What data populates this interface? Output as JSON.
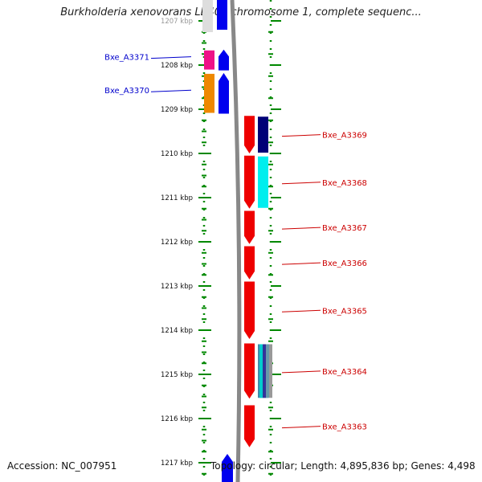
{
  "title": "Burkholderia xenovorans LB400 chromosome 1, complete sequenc...",
  "footer": {
    "accession": "Accession: NC_007951",
    "summary": "Topology: circular; Length: 4,895,836 bp; Genes: 4,498"
  },
  "colors": {
    "forward_label": "#0000cc",
    "reverse_label": "#cc0000",
    "backbone": "#888888",
    "ticks": "#008800"
  },
  "ruler": [
    {
      "label": "1207 kbp",
      "kbp": 1207
    },
    {
      "label": "1208 kbp",
      "kbp": 1208
    },
    {
      "label": "1209 kbp",
      "kbp": 1209
    },
    {
      "label": "1210 kbp",
      "kbp": 1210
    },
    {
      "label": "1211 kbp",
      "kbp": 1211
    },
    {
      "label": "1212 kbp",
      "kbp": 1212
    },
    {
      "label": "1213 kbp",
      "kbp": 1213
    },
    {
      "label": "1214 kbp",
      "kbp": 1214
    },
    {
      "label": "1215 kbp",
      "kbp": 1215
    },
    {
      "label": "1216 kbp",
      "kbp": 1216
    },
    {
      "label": "1217 kbp",
      "kbp": 1217
    }
  ],
  "genes": [
    {
      "name": "Bxe_A3371",
      "strand": "+",
      "start_kbp": 1207.65,
      "end_kbp": 1208.12,
      "color": "#0000ee",
      "cog_color": "#ee1188"
    },
    {
      "name": "Bxe_A3370",
      "strand": "+",
      "start_kbp": 1208.18,
      "end_kbp": 1209.1,
      "color": "#0000ee",
      "cog_color": "#ee8800"
    },
    {
      "name": "Bxe_A3369",
      "strand": "-",
      "start_kbp": 1209.15,
      "end_kbp": 1210.0,
      "color": "#ee0000",
      "cog_color": "#000077"
    },
    {
      "name": "Bxe_A3368",
      "strand": "-",
      "start_kbp": 1210.05,
      "end_kbp": 1211.25,
      "color": "#ee0000",
      "cog_color": "#00eeee"
    },
    {
      "name": "Bxe_A3367",
      "strand": "-",
      "start_kbp": 1211.3,
      "end_kbp": 1212.05,
      "color": "#ee0000",
      "cog_color": ""
    },
    {
      "name": "Bxe_A3366",
      "strand": "-",
      "start_kbp": 1212.1,
      "end_kbp": 1212.85,
      "color": "#ee0000",
      "cog_color": ""
    },
    {
      "name": "Bxe_A3365",
      "strand": "-",
      "start_kbp": 1212.9,
      "end_kbp": 1214.2,
      "color": "#ee0000",
      "cog_color": ""
    },
    {
      "name": "Bxe_A3364",
      "strand": "-",
      "start_kbp": 1214.3,
      "end_kbp": 1215.55,
      "color": "#ee0000",
      "cog_color": "#4488aa"
    },
    {
      "name": "Bxe_A3363",
      "strand": "-",
      "start_kbp": 1215.7,
      "end_kbp": 1216.65,
      "color": "#ee0000",
      "cog_color": ""
    }
  ]
}
